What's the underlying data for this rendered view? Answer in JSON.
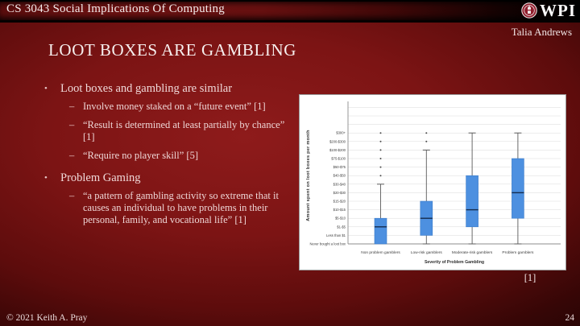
{
  "header": {
    "course_title": "CS 3043 Social Implications Of Computing",
    "logo_text": "WPI",
    "author": "Talia Andrews"
  },
  "slide": {
    "title": "LOOT BOXES ARE GAMBLING",
    "citation": "[1]",
    "copyright": "© 2021 Keith A. Pray",
    "page_number": "24"
  },
  "bullets": [
    {
      "text": "Loot boxes and gambling are similar",
      "sub": [
        "Involve money staked on a “future event” [1]",
        "“Result is determined at least partially by chance” [1]",
        "“Require no player skill” [5]"
      ]
    },
    {
      "text": "Problem Gaming",
      "sub": [
        "“a pattern of gambling activity so extreme that it causes an individual to have problems in their personal, family, and vocational life” [1]"
      ]
    }
  ],
  "chart_data": {
    "type": "boxplot",
    "title": "",
    "xlabel": "Severity of Problem Gambling",
    "ylabel": "Amount spent on loot boxes per month",
    "categories": [
      "Non problem gamblers",
      "Low-risk gamblers",
      "Moderate-risk gamblers",
      "Problem gamblers"
    ],
    "y_categories": [
      "Never bought a loot box",
      "Less than $1",
      "$1-$5",
      "$5-$10",
      "$10-$15",
      "$15-$20",
      "$20-$30",
      "$30-$40",
      "$40-$50",
      "$50-$75",
      "$75-$100",
      "$100-$200",
      "$200-$300",
      "$300+"
    ],
    "y_scale_note": "ordinal spending bands; box values are indices into y_categories",
    "grid": true,
    "extra_unlabeled_gridlines_above": 3,
    "legend": "none",
    "series": [
      {
        "name": "Non problem gamblers",
        "whisker_low": 0,
        "q1": 0,
        "median": 2,
        "q3": 3,
        "whisker_high": 7,
        "outliers": [
          8,
          9,
          10,
          11,
          12,
          13
        ]
      },
      {
        "name": "Low-risk gamblers",
        "whisker_low": 0,
        "q1": 1,
        "median": 3,
        "q3": 5,
        "whisker_high": 11,
        "outliers": [
          12,
          13
        ]
      },
      {
        "name": "Moderate-risk gamblers",
        "whisker_low": 0,
        "q1": 2,
        "median": 4,
        "q3": 8,
        "whisker_high": 13,
        "outliers": []
      },
      {
        "name": "Problem gamblers",
        "whisker_low": 0,
        "q1": 3,
        "median": 6,
        "q3": 10,
        "whisker_high": 13,
        "outliers": []
      }
    ],
    "colors": {
      "box_fill": "#4d90e0",
      "box_stroke": "#3a7bc8",
      "median": "#152c4e",
      "whisker": "#5a5a5a",
      "outlier": "#4a4a4a",
      "grid": "#d9d9d9",
      "axis": "#8c8c8c",
      "label": "#3c3c3c"
    }
  }
}
